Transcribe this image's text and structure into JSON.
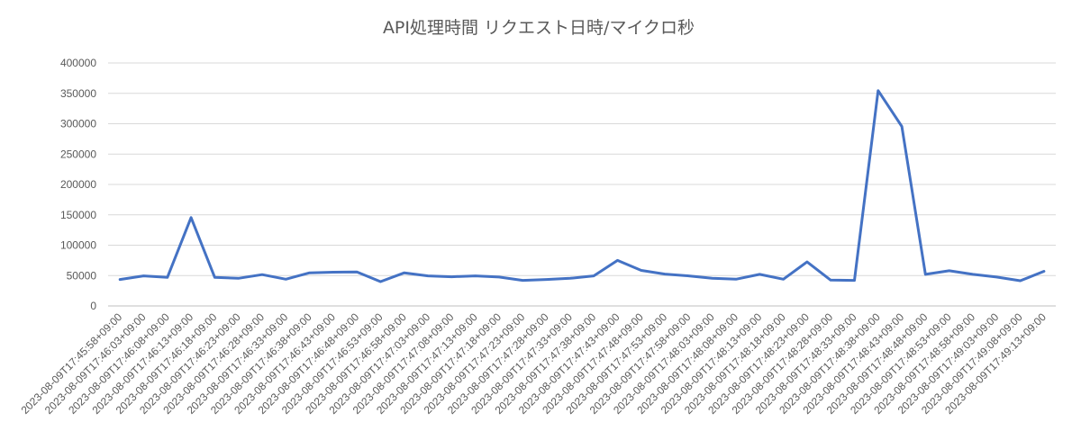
{
  "chart_data": {
    "type": "line",
    "title": "API処理時間 リクエスト日時/マイクロ秒",
    "xlabel": "",
    "ylabel": "",
    "ylim": [
      0,
      400000
    ],
    "yticks": [
      0,
      50000,
      100000,
      150000,
      200000,
      250000,
      300000,
      350000,
      400000
    ],
    "grid": true,
    "legend": "none",
    "line_color": "#4472C4",
    "x": [
      "2023-08-09T17:45:58+09:00",
      "2023-08-09T17:46:03+09:00",
      "2023-08-09T17:46:08+09:00",
      "2023-08-09T17:46:13+09:00",
      "2023-08-09T17:46:18+09:00",
      "2023-08-09T17:46:23+09:00",
      "2023-08-09T17:46:28+09:00",
      "2023-08-09T17:46:33+09:00",
      "2023-08-09T17:46:38+09:00",
      "2023-08-09T17:46:43+09:00",
      "2023-08-09T17:46:48+09:00",
      "2023-08-09T17:46:53+09:00",
      "2023-08-09T17:46:58+09:00",
      "2023-08-09T17:47:03+09:00",
      "2023-08-09T17:47:08+09:00",
      "2023-08-09T17:47:13+09:00",
      "2023-08-09T17:47:18+09:00",
      "2023-08-09T17:47:23+09:00",
      "2023-08-09T17:47:28+09:00",
      "2023-08-09T17:47:33+09:00",
      "2023-08-09T17:47:38+09:00",
      "2023-08-09T17:47:43+09:00",
      "2023-08-09T17:47:48+09:00",
      "2023-08-09T17:47:53+09:00",
      "2023-08-09T17:47:58+09:00",
      "2023-08-09T17:48:03+09:00",
      "2023-08-09T17:48:08+09:00",
      "2023-08-09T17:48:13+09:00",
      "2023-08-09T17:48:18+09:00",
      "2023-08-09T17:48:23+09:00",
      "2023-08-09T17:48:28+09:00",
      "2023-08-09T17:48:33+09:00",
      "2023-08-09T17:48:38+09:00",
      "2023-08-09T17:48:43+09:00",
      "2023-08-09T17:48:48+09:00",
      "2023-08-09T17:48:53+09:00",
      "2023-08-09T17:48:58+09:00",
      "2023-08-09T17:49:03+09:00",
      "2023-08-09T17:49:08+09:00",
      "2023-08-09T17:49:13+09:00"
    ],
    "values": [
      43500,
      49500,
      47000,
      145500,
      47000,
      45500,
      51500,
      44000,
      54500,
      55500,
      56000,
      40000,
      54500,
      49500,
      48000,
      49500,
      47500,
      42000,
      43500,
      45500,
      49500,
      75000,
      58500,
      52500,
      49500,
      45500,
      44000,
      52000,
      44000,
      72500,
      42500,
      42000,
      354500,
      295500,
      52000,
      58000,
      52000,
      47500,
      41500,
      57000
    ]
  }
}
